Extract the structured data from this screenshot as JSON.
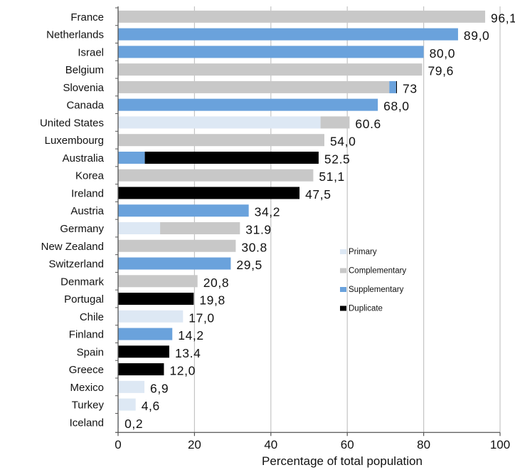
{
  "chart_data": {
    "type": "bar",
    "orientation": "horizontal",
    "stacked": true,
    "xlabel": "Percentage of total population",
    "xlim": [
      0,
      100
    ],
    "xticks": [
      "0",
      "20",
      "40",
      "60",
      "80",
      "100"
    ],
    "grid": "vertical",
    "legend": {
      "position": "right-middle",
      "entries": [
        {
          "name": "Primary",
          "color": "#dde8f4"
        },
        {
          "name": "Complementary",
          "color": "#c8c8c8"
        },
        {
          "name": "Supplementary",
          "color": "#6aa2dc"
        },
        {
          "name": "Duplicate",
          "color": "#000000"
        }
      ]
    },
    "categories": [
      {
        "name": "France",
        "label": "96,1",
        "segments": [
          {
            "type": "Complementary",
            "value": 96.1
          }
        ]
      },
      {
        "name": "Netherlands",
        "label": "89,0",
        "segments": [
          {
            "type": "Supplementary",
            "value": 89.0
          }
        ]
      },
      {
        "name": "Israel",
        "label": "80,0",
        "segments": [
          {
            "type": "Supplementary",
            "value": 80.0
          }
        ]
      },
      {
        "name": "Belgium",
        "label": "79,6",
        "segments": [
          {
            "type": "Complementary",
            "value": 79.6
          }
        ]
      },
      {
        "name": "Slovenia",
        "label": "73",
        "segments": [
          {
            "type": "Complementary",
            "value": 71.0
          },
          {
            "type": "Supplementary",
            "value": 1.8
          },
          {
            "type": "Duplicate",
            "value": 0.2
          }
        ]
      },
      {
        "name": "Canada",
        "label": "68,0",
        "segments": [
          {
            "type": "Supplementary",
            "value": 68.0
          }
        ]
      },
      {
        "name": "United States",
        "label": "60.6",
        "segments": [
          {
            "type": "Primary",
            "value": 53.0
          },
          {
            "type": "Complementary",
            "value": 7.6
          }
        ]
      },
      {
        "name": "Luxembourg",
        "label": "54,0",
        "segments": [
          {
            "type": "Complementary",
            "value": 54.0
          }
        ]
      },
      {
        "name": "Australia",
        "label": "52.5",
        "segments": [
          {
            "type": "Supplementary",
            "value": 7.0
          },
          {
            "type": "Duplicate",
            "value": 45.5
          }
        ]
      },
      {
        "name": "Korea",
        "label": "51,1",
        "segments": [
          {
            "type": "Complementary",
            "value": 51.1
          }
        ]
      },
      {
        "name": "Ireland",
        "label": "47,5",
        "segments": [
          {
            "type": "Duplicate",
            "value": 47.5
          }
        ]
      },
      {
        "name": "Austria",
        "label": "34,2",
        "segments": [
          {
            "type": "Supplementary",
            "value": 34.2
          }
        ]
      },
      {
        "name": "Germany",
        "label": "31.9",
        "segments": [
          {
            "type": "Primary",
            "value": 11.0
          },
          {
            "type": "Complementary",
            "value": 20.9
          }
        ]
      },
      {
        "name": "New Zealand",
        "label": "30.8",
        "segments": [
          {
            "type": "Complementary",
            "value": 30.8
          }
        ]
      },
      {
        "name": "Switzerland",
        "label": "29,5",
        "segments": [
          {
            "type": "Supplementary",
            "value": 29.5
          }
        ]
      },
      {
        "name": "Denmark",
        "label": "20,8",
        "segments": [
          {
            "type": "Complementary",
            "value": 20.8
          }
        ]
      },
      {
        "name": "Portugal",
        "label": "19,8",
        "segments": [
          {
            "type": "Duplicate",
            "value": 19.8
          }
        ]
      },
      {
        "name": "Chile",
        "label": "17,0",
        "segments": [
          {
            "type": "Primary",
            "value": 17.0
          }
        ]
      },
      {
        "name": "Finland",
        "label": "14,2",
        "segments": [
          {
            "type": "Supplementary",
            "value": 14.2
          }
        ]
      },
      {
        "name": "Spain",
        "label": "13.4",
        "segments": [
          {
            "type": "Duplicate",
            "value": 13.4
          }
        ]
      },
      {
        "name": "Greece",
        "label": "12,0",
        "segments": [
          {
            "type": "Duplicate",
            "value": 12.0
          }
        ]
      },
      {
        "name": "Mexico",
        "label": "6,9",
        "segments": [
          {
            "type": "Primary",
            "value": 6.9
          }
        ]
      },
      {
        "name": "Turkey",
        "label": "4,6",
        "segments": [
          {
            "type": "Primary",
            "value": 4.6
          }
        ]
      },
      {
        "name": "Iceland",
        "label": "0,2",
        "segments": [
          {
            "type": "Primary",
            "value": 0.2
          }
        ]
      }
    ]
  }
}
